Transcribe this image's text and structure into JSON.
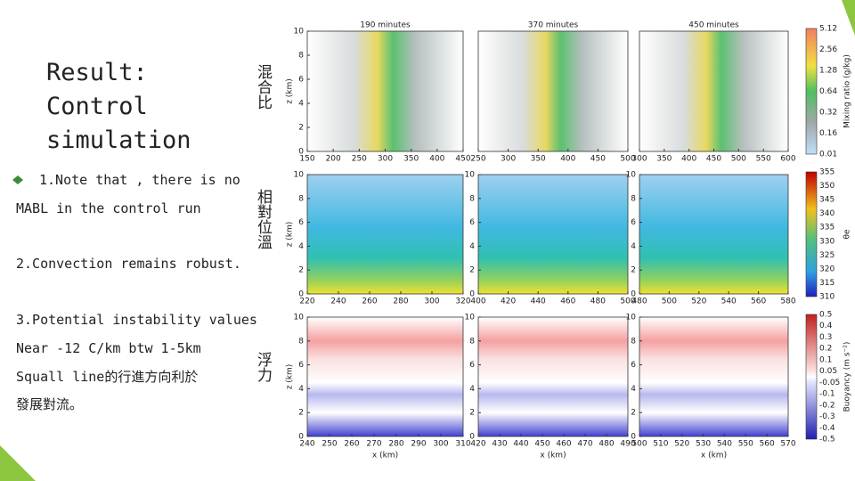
{
  "slide": {
    "title_lines": [
      "Result:",
      "Control",
      "simulation"
    ],
    "text_lines": [
      "1.Note that , there is no",
      "MABL in the control run",
      "2.Convection remains robust.",
      "3.Potential instability values",
      "Near -12 C/km btw 1-5km",
      "Squall line的行進方向利於",
      "發展對流。"
    ],
    "side_labels": [
      "混合比",
      "相對位溫",
      "浮力"
    ]
  },
  "figure": {
    "z_label": "z (km)",
    "x_label": "x (km)",
    "yticks": [
      0,
      2,
      4,
      6,
      8,
      10
    ],
    "rows": [
      {
        "panels": [
          {
            "title": "190 minutes",
            "xticks": [
              150,
              200,
              250,
              300,
              350,
              400,
              450
            ]
          },
          {
            "title": "370 minutes",
            "xticks": [
              250,
              300,
              350,
              400,
              450,
              500
            ]
          },
          {
            "title": "450 minutes",
            "xticks": [
              300,
              350,
              400,
              450,
              500,
              550,
              600
            ]
          }
        ],
        "colorbar_title": "Mixing ratio (g/kg)",
        "colorbar_labels": [
          5.12,
          2.56,
          1.28,
          0.64,
          0.32,
          0.16,
          0.01
        ]
      },
      {
        "panels": [
          {
            "xticks": [
              220,
              240,
              260,
              280,
              300,
              320
            ]
          },
          {
            "xticks": [
              400,
              420,
              440,
              460,
              480,
              500
            ]
          },
          {
            "xticks": [
              480,
              500,
              520,
              540,
              560,
              580
            ]
          }
        ],
        "colorbar_title": "θe",
        "colorbar_labels": [
          355,
          350,
          345,
          340,
          335,
          330,
          325,
          320,
          315,
          310
        ]
      },
      {
        "panels": [
          {
            "xticks": [
              240,
              250,
              260,
              270,
              280,
              290,
              300,
              310
            ]
          },
          {
            "xticks": [
              420,
              430,
              440,
              450,
              460,
              470,
              480,
              490
            ]
          },
          {
            "xticks": [
              500,
              510,
              520,
              530,
              540,
              550,
              560,
              570
            ]
          }
        ],
        "colorbar_title": "Buoyancy (m s⁻²)",
        "colorbar_labels": [
          0.5,
          0.4,
          0.3,
          0.2,
          0.1,
          0.05,
          -0.05,
          -0.1,
          -0.2,
          -0.3,
          -0.4,
          -0.5
        ]
      }
    ]
  }
}
